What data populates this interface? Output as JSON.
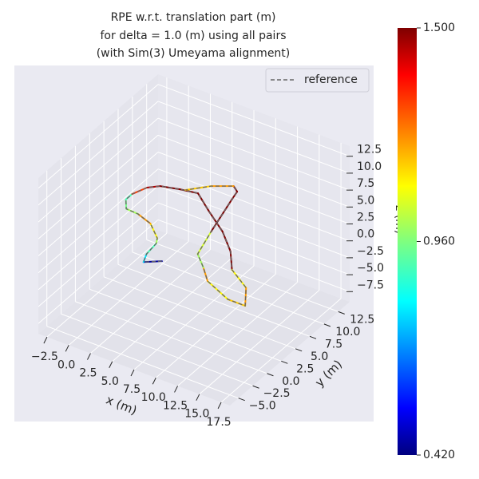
{
  "chart_data": {
    "type": "line3d",
    "title": [
      "RPE w.r.t. translation part (m)",
      "for delta = 1.0 (m) using all pairs",
      "(with Sim(3) Umeyama alignment)"
    ],
    "xlabel": "x (m)",
    "ylabel": "y (m)",
    "zlabel": "z (m)",
    "xlim": [
      -3.5,
      18.5
    ],
    "ylim": [
      -6.5,
      14.5
    ],
    "zlim": [
      -9,
      14
    ],
    "xticks": [
      {
        "value": -2.5,
        "label": "−2.5"
      },
      {
        "value": 0,
        "label": "0.0"
      },
      {
        "value": 2.5,
        "label": "2.5"
      },
      {
        "value": 5,
        "label": "5.0"
      },
      {
        "value": 7.5,
        "label": "7.5"
      },
      {
        "value": 10,
        "label": "10.0"
      },
      {
        "value": 12.5,
        "label": "12.5"
      },
      {
        "value": 15,
        "label": "15.0"
      },
      {
        "value": 17.5,
        "label": "17.5"
      }
    ],
    "yticks": [
      {
        "value": -5,
        "label": "−5.0"
      },
      {
        "value": -2.5,
        "label": "−2.5"
      },
      {
        "value": 0,
        "label": "0.0"
      },
      {
        "value": 2.5,
        "label": "2.5"
      },
      {
        "value": 5,
        "label": "5.0"
      },
      {
        "value": 7.5,
        "label": "7.5"
      },
      {
        "value": 10,
        "label": "10.0"
      },
      {
        "value": 12.5,
        "label": "12.5"
      }
    ],
    "zticks": [
      {
        "value": -7.5,
        "label": "−7.5"
      },
      {
        "value": -5,
        "label": "−5.0"
      },
      {
        "value": -2.5,
        "label": "−2.5"
      },
      {
        "value": 0,
        "label": "0.0"
      },
      {
        "value": 2.5,
        "label": "2.5"
      },
      {
        "value": 5,
        "label": "5.0"
      },
      {
        "value": 7.5,
        "label": "7.5"
      },
      {
        "value": 10,
        "label": "10.0"
      },
      {
        "value": 12.5,
        "label": "12.5"
      }
    ],
    "grid": true,
    "reference": {
      "name": "reference",
      "color": "#666666"
    },
    "legend": "upper right",
    "colormap": "jet",
    "clim": [
      0.42,
      1.5
    ],
    "cticks": [
      {
        "value": 0.42,
        "label": "0.420"
      },
      {
        "value": 0.96,
        "label": "0.960"
      },
      {
        "value": 1.5,
        "label": "1.500"
      }
    ],
    "trajectory": {
      "x": [
        6.9,
        5.5,
        5.0,
        4.8,
        4.4,
        2.5,
        0.6,
        -0.8,
        -1.7,
        -1.7,
        -1.1,
        -0.2,
        1.7,
        3.5,
        6.1,
        9.0,
        11.5,
        13.3,
        16.1,
        17.7,
        15.7,
        12.4,
        10.8,
        9.1,
        8.1,
        6.8,
        6.5,
        5.7,
        3.9,
        2.2
      ],
      "y": [
        -0.7,
        -1.8,
        -0.5,
        1.5,
        2.3,
        4.0,
        4.7,
        4.8,
        6.1,
        7.2,
        8.9,
        9.8,
        10.4,
        10.8,
        8.8,
        6.7,
        4.3,
        1.8,
        0.0,
        -2.6,
        -2.6,
        -1.1,
        0.6,
        2.2,
        6.1,
        11.7,
        13.1,
        13.7,
        12.5,
        10.6
      ],
      "z": [
        2.5,
        2.5,
        2.5,
        2.5,
        2.5,
        2.5,
        2.5,
        2.5,
        2.5,
        2.5,
        2.5,
        2.5,
        2.5,
        2.5,
        2.5,
        2.5,
        2.5,
        2.5,
        2.5,
        2.5,
        2.5,
        2.5,
        2.5,
        2.5,
        2.5,
        2.5,
        2.5,
        2.5,
        2.5,
        2.5
      ],
      "error": [
        0.45,
        0.8,
        0.9,
        1.0,
        1.1,
        1.2,
        1.0,
        0.95,
        0.9,
        1.3,
        1.45,
        1.5,
        1.5,
        1.5,
        1.5,
        1.5,
        1.5,
        1.1,
        1.2,
        1.15,
        1.1,
        1.2,
        1.0,
        1.05,
        1.5,
        1.5,
        1.5,
        1.2,
        1.15,
        1.3
      ]
    }
  }
}
